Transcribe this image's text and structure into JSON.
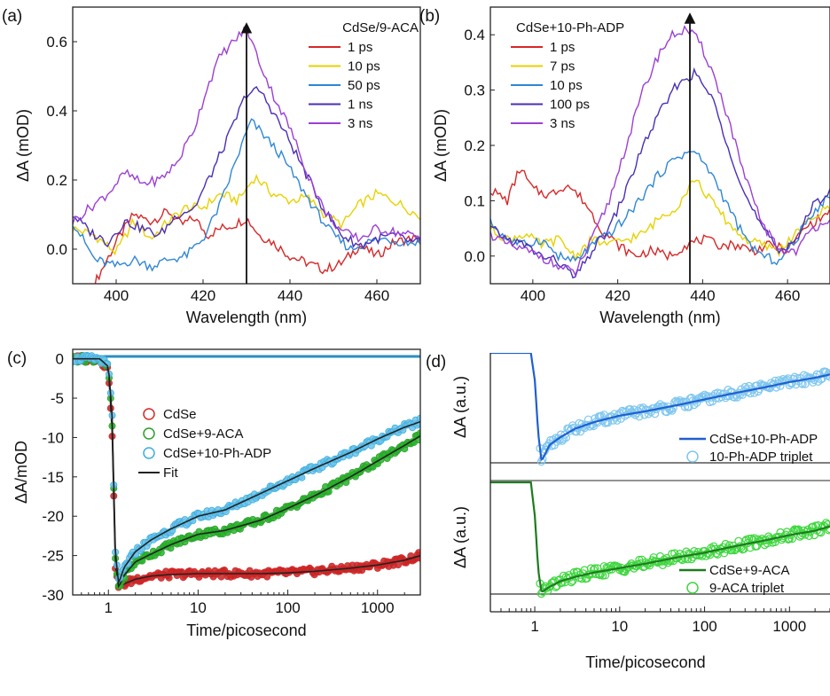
{
  "chart_data": [
    {
      "panel_label": "(a)",
      "type": "line",
      "xlabel": "Wavelength (nm)",
      "ylabel": "ΔA (mOD)",
      "xlim": [
        390,
        470
      ],
      "ylim": [
        -0.1,
        0.7
      ],
      "xticks": [
        400,
        420,
        440,
        460
      ],
      "yticks": [
        0.0,
        0.2,
        0.4,
        0.6
      ],
      "ytick_labels": [
        "0.0",
        "0.2",
        "0.4",
        "0.6"
      ],
      "legend_title": "CdSe/9-ACA",
      "legend_position": "top-right",
      "annotation": {
        "type": "arrow-up",
        "x": 430,
        "y_from": -0.1,
        "y_to": 0.64
      },
      "series": [
        {
          "name": "1 ps",
          "color": "#d62828",
          "x": [
            395,
            400,
            404,
            408,
            412,
            415,
            418,
            421,
            424,
            427,
            430,
            433,
            436,
            440,
            444,
            448,
            452,
            456,
            460,
            464,
            468,
            470
          ],
          "y": [
            -0.1,
            0.02,
            0.1,
            0.08,
            0.11,
            0.07,
            0.09,
            0.04,
            0.06,
            0.07,
            0.09,
            0.04,
            0.02,
            -0.02,
            -0.04,
            -0.06,
            -0.04,
            0.01,
            -0.02,
            0.02,
            0.03,
            0.03
          ]
        },
        {
          "name": "10 ps",
          "color": "#e6d200",
          "x": [
            390,
            395,
            400,
            404,
            408,
            412,
            416,
            420,
            424,
            428,
            432,
            436,
            440,
            444,
            448,
            452,
            456,
            460,
            464,
            468,
            470
          ],
          "y": [
            0.06,
            0.04,
            -0.01,
            0.08,
            0.03,
            0.08,
            0.12,
            0.12,
            0.16,
            0.14,
            0.21,
            0.16,
            0.14,
            0.15,
            0.1,
            0.07,
            0.13,
            0.16,
            0.14,
            0.11,
            0.09
          ]
        },
        {
          "name": "50 ps",
          "color": "#2f86d6",
          "x": [
            390,
            395,
            400,
            404,
            408,
            412,
            416,
            420,
            424,
            428,
            431,
            434,
            438,
            442,
            446,
            450,
            454,
            458,
            462,
            466,
            470
          ],
          "y": [
            0.08,
            -0.03,
            -0.05,
            -0.03,
            -0.05,
            -0.03,
            -0.02,
            0.03,
            0.13,
            0.27,
            0.37,
            0.33,
            0.27,
            0.19,
            0.11,
            0.04,
            0.0,
            0.02,
            0.03,
            0.02,
            0.02
          ]
        },
        {
          "name": "1 ns",
          "color": "#4a2fb5",
          "x": [
            390,
            394,
            398,
            402,
            406,
            410,
            414,
            418,
            422,
            426,
            430,
            433,
            436,
            440,
            444,
            448,
            452,
            456,
            460,
            464,
            468,
            470
          ],
          "y": [
            0.1,
            0.05,
            0.02,
            0.08,
            0.06,
            0.04,
            0.1,
            0.12,
            0.22,
            0.33,
            0.45,
            0.46,
            0.4,
            0.31,
            0.21,
            0.11,
            0.04,
            0.01,
            0.03,
            0.04,
            0.02,
            0.02
          ]
        },
        {
          "name": "3 ns",
          "color": "#9b3fd6",
          "x": [
            390,
            394,
            398,
            402,
            406,
            410,
            414,
            418,
            421,
            424,
            427,
            430,
            433,
            436,
            440,
            444,
            448,
            452,
            456,
            460,
            464,
            468,
            470
          ],
          "y": [
            0.08,
            0.12,
            0.16,
            0.22,
            0.19,
            0.2,
            0.25,
            0.35,
            0.47,
            0.56,
            0.6,
            0.64,
            0.54,
            0.45,
            0.35,
            0.22,
            0.11,
            0.05,
            0.03,
            0.06,
            0.05,
            0.04,
            0.03
          ]
        }
      ]
    },
    {
      "panel_label": "(b)",
      "type": "line",
      "xlabel": "Wavelength (nm)",
      "ylabel": "ΔA (mOD)",
      "xlim": [
        390,
        470
      ],
      "ylim": [
        -0.05,
        0.45
      ],
      "xticks": [
        400,
        420,
        440,
        460
      ],
      "yticks": [
        0.0,
        0.1,
        0.2,
        0.3,
        0.4
      ],
      "ytick_labels": [
        "0.0",
        "0.1",
        "0.2",
        "0.3",
        "0.4"
      ],
      "legend_title": "CdSe+10-Ph-ADP",
      "legend_position": "top-left",
      "annotation": {
        "type": "arrow-up",
        "x": 437,
        "y_from": -0.05,
        "y_to": 0.43
      },
      "series": [
        {
          "name": "1 ps",
          "color": "#d62828",
          "x": [
            390,
            394,
            397,
            400,
            404,
            408,
            412,
            416,
            420,
            424,
            428,
            432,
            436,
            440,
            444,
            448,
            452,
            456,
            460,
            464,
            468,
            470
          ],
          "y": [
            0.12,
            0.1,
            0.16,
            0.12,
            0.11,
            0.13,
            0.1,
            0.05,
            0.02,
            0.0,
            0.01,
            0.0,
            0.02,
            0.03,
            0.02,
            0.02,
            0.01,
            0.02,
            0.01,
            0.05,
            0.07,
            0.08
          ]
        },
        {
          "name": "7 ps",
          "color": "#e6d200",
          "x": [
            390,
            394,
            398,
            402,
            406,
            410,
            414,
            418,
            422,
            426,
            430,
            434,
            438,
            442,
            446,
            450,
            454,
            458,
            462,
            466,
            470
          ],
          "y": [
            0.05,
            0.03,
            0.04,
            0.02,
            0.03,
            0.0,
            0.03,
            0.02,
            0.03,
            0.04,
            0.07,
            0.09,
            0.14,
            0.1,
            0.06,
            0.03,
            0.02,
            0.01,
            0.04,
            0.07,
            0.09
          ]
        },
        {
          "name": "10 ps",
          "color": "#2f86d6",
          "x": [
            390,
            394,
            398,
            402,
            406,
            410,
            414,
            418,
            422,
            426,
            430,
            434,
            438,
            442,
            446,
            450,
            454,
            458,
            462,
            466,
            470
          ],
          "y": [
            0.06,
            0.03,
            0.02,
            0.03,
            0.0,
            -0.01,
            0.02,
            0.04,
            0.07,
            0.11,
            0.15,
            0.18,
            0.19,
            0.15,
            0.09,
            0.03,
            0.0,
            -0.01,
            0.03,
            0.08,
            0.11
          ]
        },
        {
          "name": "100 ps",
          "color": "#4a2fb5",
          "x": [
            390,
            394,
            398,
            402,
            406,
            410,
            414,
            418,
            422,
            426,
            430,
            434,
            438,
            442,
            446,
            450,
            454,
            458,
            462,
            466,
            470
          ],
          "y": [
            0.05,
            0.03,
            0.02,
            0.0,
            -0.01,
            -0.04,
            0.01,
            0.05,
            0.12,
            0.2,
            0.26,
            0.31,
            0.33,
            0.29,
            0.2,
            0.11,
            0.05,
            0.01,
            0.03,
            0.09,
            0.12
          ]
        },
        {
          "name": "3 ns",
          "color": "#9b3fd6",
          "x": [
            390,
            394,
            398,
            402,
            406,
            410,
            414,
            418,
            422,
            426,
            430,
            433,
            436,
            439,
            442,
            446,
            450,
            454,
            458,
            462,
            466,
            470
          ],
          "y": [
            0.04,
            0.02,
            0.01,
            0.0,
            -0.02,
            -0.03,
            0.03,
            0.1,
            0.2,
            0.3,
            0.37,
            0.4,
            0.41,
            0.39,
            0.34,
            0.25,
            0.14,
            0.06,
            0.01,
            0.01,
            0.05,
            0.07
          ]
        }
      ]
    },
    {
      "panel_label": "(c)",
      "type": "scatter",
      "xlabel": "Time/picosecond",
      "ylabel": "ΔA/mOD",
      "xscale": "log",
      "xlim": [
        0.4,
        3000
      ],
      "ylim": [
        -30,
        1.2
      ],
      "xticks": [
        1,
        10,
        100,
        1000
      ],
      "xtick_labels": [
        "1",
        "10",
        "100",
        "1000"
      ],
      "yticks": [
        0,
        -5,
        -10,
        -15,
        -20,
        -25,
        -30
      ],
      "ytick_labels": [
        "0",
        "-5",
        "-10",
        "-15",
        "-20",
        "-25",
        "-30"
      ],
      "legend_position": "center-left",
      "fit_label": "Fit",
      "fit_color": "#222222",
      "series": [
        {
          "name": "CdSe",
          "color": "#d62828",
          "fill": "#c42424",
          "x": [
            0.4,
            0.6,
            0.8,
            1.0,
            1.1,
            1.2,
            1.3,
            1.5,
            2,
            3,
            5,
            10,
            20,
            50,
            100,
            200,
            500,
            1000,
            2000,
            3000
          ],
          "y": [
            0,
            0,
            0,
            -1.5,
            -9,
            -27,
            -29,
            -28.6,
            -28,
            -27.6,
            -27.4,
            -27.3,
            -27.3,
            -27.3,
            -27.2,
            -27.0,
            -26.6,
            -26.2,
            -25.6,
            -25.0
          ]
        },
        {
          "name": "CdSe+9-ACA",
          "color": "#2aa02a",
          "fill": "#29b52c",
          "x": [
            0.4,
            0.6,
            0.8,
            1.0,
            1.1,
            1.2,
            1.3,
            1.5,
            2,
            3,
            5,
            10,
            20,
            50,
            100,
            200,
            500,
            1000,
            2000,
            3000
          ],
          "y": [
            0,
            0,
            0,
            -1.2,
            -8,
            -26,
            -29,
            -27.5,
            -25.8,
            -24.8,
            -23.6,
            -22.3,
            -21.8,
            -20.5,
            -19.0,
            -17.4,
            -15.0,
            -13.0,
            -11.0,
            -9.8
          ]
        },
        {
          "name": "CdSe+10-Ph-ADP",
          "color": "#3aaee0",
          "fill": "#6fc3ea",
          "x": [
            0.4,
            0.6,
            0.8,
            1.0,
            1.1,
            1.2,
            1.3,
            1.5,
            2,
            3,
            5,
            10,
            20,
            50,
            100,
            200,
            500,
            1000,
            2000,
            3000
          ],
          "y": [
            0,
            0,
            0,
            -1.0,
            -7,
            -25,
            -28.5,
            -26.5,
            -24.5,
            -23.0,
            -21.6,
            -20.0,
            -19.2,
            -17.1,
            -15.5,
            -13.9,
            -11.9,
            -10.2,
            -8.7,
            -8.0
          ]
        }
      ],
      "flat_trace_color": "#2a8ec0"
    },
    {
      "panel_label": "(d)",
      "type": "scatter",
      "xlabel": "Time/picosecond",
      "ylabel": "ΔA (a.u.)",
      "xscale": "log",
      "xlim": [
        0.3,
        3000
      ],
      "xticks": [
        1,
        10,
        100,
        1000
      ],
      "xtick_labels": [
        "1",
        "10",
        "100",
        "1000"
      ],
      "subpanels": [
        {
          "legend_position": "bottom-right",
          "fit_name": "CdSe+10-Ph-ADP",
          "fit_color": "#1f5fd0",
          "marker_name": "10-Ph-ADP triplet",
          "marker_color": "#7ec6ee",
          "x": [
            0.3,
            0.6,
            0.9,
            1.0,
            1.1,
            1.2,
            1.5,
            2,
            3,
            5,
            10,
            20,
            50,
            100,
            200,
            500,
            1000,
            2000,
            3000
          ],
          "y": [
            1.0,
            1.0,
            1.0,
            0.75,
            0.25,
            0.0,
            0.15,
            0.22,
            0.3,
            0.36,
            0.42,
            0.46,
            0.52,
            0.57,
            0.62,
            0.68,
            0.73,
            0.77,
            0.8
          ]
        },
        {
          "legend_position": "bottom-right",
          "fit_name": "CdSe+9-ACA",
          "fit_color": "#1f7a1f",
          "marker_name": "9-ACA triplet",
          "marker_color": "#3ed63e",
          "x": [
            0.3,
            0.6,
            0.9,
            1.0,
            1.1,
            1.2,
            1.5,
            2,
            3,
            5,
            10,
            20,
            50,
            100,
            200,
            500,
            1000,
            2000,
            3000
          ],
          "y": [
            1.0,
            1.0,
            1.0,
            0.7,
            0.2,
            0.0,
            0.05,
            0.1,
            0.14,
            0.18,
            0.22,
            0.26,
            0.32,
            0.36,
            0.41,
            0.47,
            0.52,
            0.56,
            0.6
          ]
        }
      ]
    }
  ]
}
